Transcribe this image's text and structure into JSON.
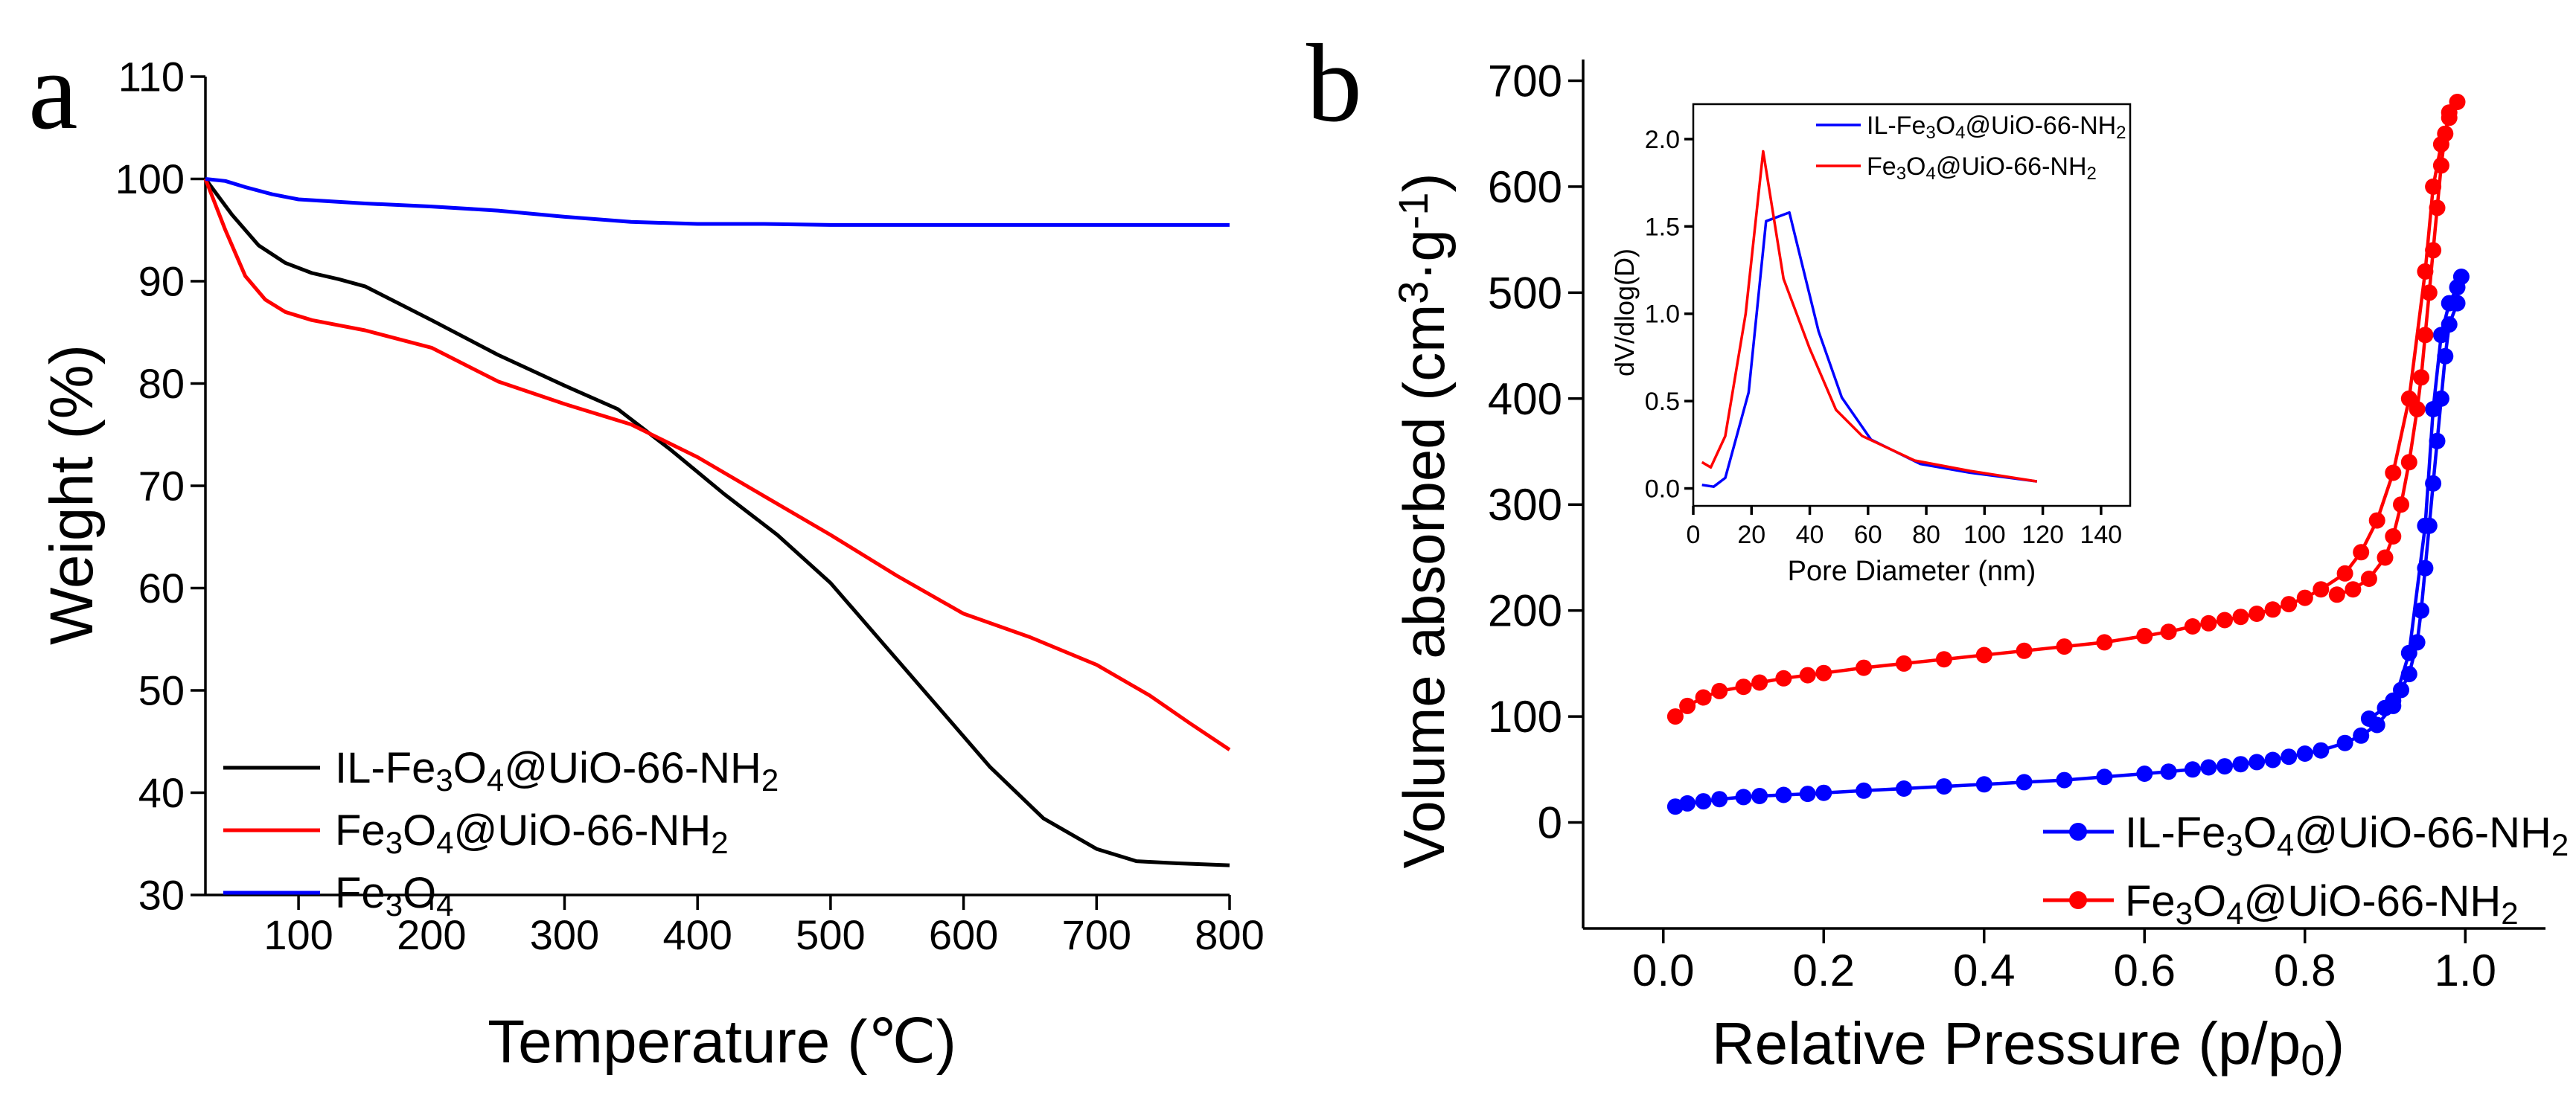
{
  "chart_data": [
    {
      "panel_label": "a",
      "type": "line",
      "title": "",
      "xlabel": "Temperature (℃)",
      "ylabel": "Weight (%)",
      "xlim": [
        30,
        800
      ],
      "ylim": [
        30,
        110
      ],
      "xticks": [
        100,
        200,
        300,
        400,
        500,
        600,
        700,
        800
      ],
      "yticks": [
        30,
        40,
        50,
        60,
        70,
        80,
        90,
        100,
        110
      ],
      "legend_position": "bottom-left",
      "series": [
        {
          "name": "IL-Fe3O4@UiO-66-NH2",
          "legend_parts": [
            [
              "IL-Fe",
              0
            ],
            [
              "3",
              1
            ],
            [
              "O",
              0
            ],
            [
              "4",
              1
            ],
            [
              "@UiO-66-NH",
              0
            ],
            [
              "2",
              1
            ]
          ],
          "color": "#000000",
          "x": [
            30,
            50,
            70,
            90,
            110,
            130,
            150,
            200,
            250,
            300,
            340,
            380,
            420,
            460,
            500,
            540,
            580,
            620,
            660,
            700,
            730,
            760,
            800
          ],
          "y": [
            100,
            96.5,
            93.5,
            91.8,
            90.8,
            90.2,
            89.5,
            86.2,
            82.8,
            79.8,
            77.5,
            73.5,
            69.2,
            65.2,
            60.5,
            54.5,
            48.5,
            42.5,
            37.5,
            34.5,
            33.3,
            33.1,
            32.9
          ]
        },
        {
          "name": "Fe3O4@UiO-66-NH2",
          "legend_parts": [
            [
              "Fe",
              0
            ],
            [
              "3",
              1
            ],
            [
              "O",
              0
            ],
            [
              "4",
              1
            ],
            [
              "@UiO-66-NH",
              0
            ],
            [
              "2",
              1
            ]
          ],
          "color": "#ff0000",
          "x": [
            30,
            45,
            60,
            75,
            90,
            110,
            150,
            200,
            250,
            300,
            350,
            400,
            450,
            500,
            550,
            600,
            650,
            700,
            740,
            770,
            800
          ],
          "y": [
            100,
            95,
            90.5,
            88.2,
            87,
            86.2,
            85.2,
            83.5,
            80.2,
            78,
            76,
            72.8,
            69,
            65.2,
            61.2,
            57.5,
            55.2,
            52.5,
            49.5,
            46.8,
            44.2
          ]
        },
        {
          "name": "Fe3O4",
          "legend_parts": [
            [
              "Fe",
              0
            ],
            [
              "3",
              1
            ],
            [
              "O",
              0
            ],
            [
              "4",
              1
            ]
          ],
          "color": "#0000ff",
          "x": [
            30,
            45,
            60,
            80,
            100,
            150,
            200,
            250,
            300,
            350,
            400,
            450,
            500,
            600,
            700,
            800
          ],
          "y": [
            100,
            99.8,
            99.2,
            98.5,
            98,
            97.6,
            97.3,
            96.9,
            96.3,
            95.8,
            95.6,
            95.6,
            95.5,
            95.5,
            95.5,
            95.5
          ]
        }
      ]
    },
    {
      "panel_label": "b",
      "type": "line",
      "title": "",
      "xlabel": "Relative Pressure (p/p0)",
      "xlabel_parts": [
        [
          "Relative Pressure (p/p",
          0
        ],
        [
          "0",
          1
        ],
        [
          ")",
          0
        ]
      ],
      "ylabel": "Volume absorbed (cm3·g-1)",
      "xlim": [
        -0.1,
        1.1
      ],
      "ylim": [
        -100,
        720
      ],
      "xticks": [
        0.0,
        0.2,
        0.4,
        0.6,
        0.8,
        1.0
      ],
      "xtick_labels": [
        "0.0",
        "0.2",
        "0.4",
        "0.6",
        "0.8",
        "1.0"
      ],
      "yticks": [
        0,
        100,
        200,
        300,
        400,
        500,
        600,
        700
      ],
      "legend_position": "bottom-right",
      "markers": true,
      "series": [
        {
          "name": "IL-Fe3O4@UiO-66-NH2",
          "legend_parts": [
            [
              "IL-Fe",
              0
            ],
            [
              "3",
              1
            ],
            [
              "O",
              0
            ],
            [
              "4",
              1
            ],
            [
              "@UiO-66-NH",
              0
            ],
            [
              "2",
              1
            ]
          ],
          "color": "#0000ff",
          "x": [
            0.015,
            0.03,
            0.05,
            0.07,
            0.1,
            0.12,
            0.15,
            0.18,
            0.2,
            0.25,
            0.3,
            0.35,
            0.4,
            0.45,
            0.5,
            0.55,
            0.6,
            0.63,
            0.66,
            0.68,
            0.7,
            0.72,
            0.74,
            0.76,
            0.78,
            0.8,
            0.82,
            0.85,
            0.87,
            0.89,
            0.91,
            0.93,
            0.95,
            0.96,
            0.97,
            0.98,
            0.99,
            0.995
          ],
          "y": [
            15,
            18,
            20,
            22,
            24,
            25,
            26,
            27,
            28,
            30,
            32,
            34,
            36,
            38,
            40,
            43,
            46,
            48,
            50,
            52,
            53,
            55,
            57,
            59,
            62,
            65,
            68,
            75,
            82,
            92,
            110,
            160,
            280,
            390,
            460,
            490,
            505,
            515
          ],
          "desorption_x": [
            0.99,
            0.98,
            0.975,
            0.97,
            0.965,
            0.96,
            0.955,
            0.95,
            0.945,
            0.94,
            0.93,
            0.92,
            0.91,
            0.9,
            0.88
          ],
          "desorption_y": [
            490,
            470,
            440,
            400,
            360,
            320,
            280,
            240,
            200,
            170,
            140,
            125,
            115,
            108,
            98
          ]
        },
        {
          "name": "Fe3O4@UiO-66-NH2",
          "legend_parts": [
            [
              "Fe",
              0
            ],
            [
              "3",
              1
            ],
            [
              "O",
              0
            ],
            [
              "4",
              1
            ],
            [
              "@UiO-66-NH",
              0
            ],
            [
              "2",
              1
            ]
          ],
          "color": "#ff0000",
          "x": [
            0.015,
            0.03,
            0.05,
            0.07,
            0.1,
            0.12,
            0.15,
            0.18,
            0.2,
            0.25,
            0.3,
            0.35,
            0.4,
            0.45,
            0.5,
            0.55,
            0.6,
            0.63,
            0.66,
            0.68,
            0.7,
            0.72,
            0.74,
            0.76,
            0.78,
            0.8,
            0.82,
            0.85,
            0.87,
            0.89,
            0.91,
            0.93,
            0.95,
            0.96,
            0.97,
            0.98,
            0.99
          ],
          "y": [
            100,
            110,
            118,
            124,
            128,
            132,
            136,
            139,
            141,
            146,
            150,
            154,
            158,
            162,
            166,
            170,
            176,
            180,
            185,
            188,
            191,
            194,
            197,
            201,
            206,
            212,
            220,
            235,
            255,
            285,
            330,
            400,
            520,
            600,
            640,
            665,
            680
          ],
          "desorption_x": [
            0.98,
            0.975,
            0.97,
            0.965,
            0.96,
            0.955,
            0.95,
            0.945,
            0.94,
            0.93,
            0.92,
            0.91,
            0.9,
            0.88,
            0.86,
            0.84
          ],
          "desorption_y": [
            670,
            650,
            620,
            580,
            540,
            500,
            460,
            420,
            390,
            340,
            300,
            270,
            250,
            230,
            220,
            215
          ]
        }
      ],
      "inset": {
        "type": "line",
        "xlabel": "Pore Diameter (nm)",
        "ylabel": "dV/dlog(D)",
        "xlim": [
          0,
          150
        ],
        "ylim": [
          -0.1,
          2.2
        ],
        "xticks": [
          0,
          20,
          40,
          60,
          80,
          100,
          120,
          140
        ],
        "yticks": [
          0.0,
          0.5,
          1.0,
          1.5,
          2.0
        ],
        "ytick_labels": [
          "0.0",
          "0.5",
          "1.0",
          "1.5",
          "2.0"
        ],
        "legend_position": "top-right",
        "series": [
          {
            "name": "IL-Fe3O4@UiO-66-NH2",
            "legend_parts": [
              [
                "IL-Fe",
                0
              ],
              [
                "3",
                1
              ],
              [
                "O",
                0
              ],
              [
                "4",
                1
              ],
              [
                "@UiO-66-NH",
                0
              ],
              [
                "2",
                1
              ]
            ],
            "color": "#0000ff",
            "x": [
              3,
              7,
              11,
              19,
              25,
              33,
              43,
              51,
              61,
              78,
              95,
              118
            ],
            "y": [
              0.02,
              0.01,
              0.06,
              0.55,
              1.53,
              1.58,
              0.9,
              0.52,
              0.28,
              0.14,
              0.09,
              0.04
            ]
          },
          {
            "name": "Fe3O4@UiO-66-NH2",
            "legend_parts": [
              [
                "Fe",
                0
              ],
              [
                "3",
                1
              ],
              [
                "O",
                0
              ],
              [
                "4",
                1
              ],
              [
                "@UiO-66-NH",
                0
              ],
              [
                "2",
                1
              ]
            ],
            "color": "#ff0000",
            "x": [
              3,
              6,
              11,
              18,
              24,
              31,
              40,
              49,
              58,
              76,
              95,
              118
            ],
            "y": [
              0.15,
              0.12,
              0.3,
              1.0,
              1.93,
              1.2,
              0.8,
              0.45,
              0.3,
              0.16,
              0.1,
              0.04
            ]
          }
        ]
      }
    }
  ]
}
